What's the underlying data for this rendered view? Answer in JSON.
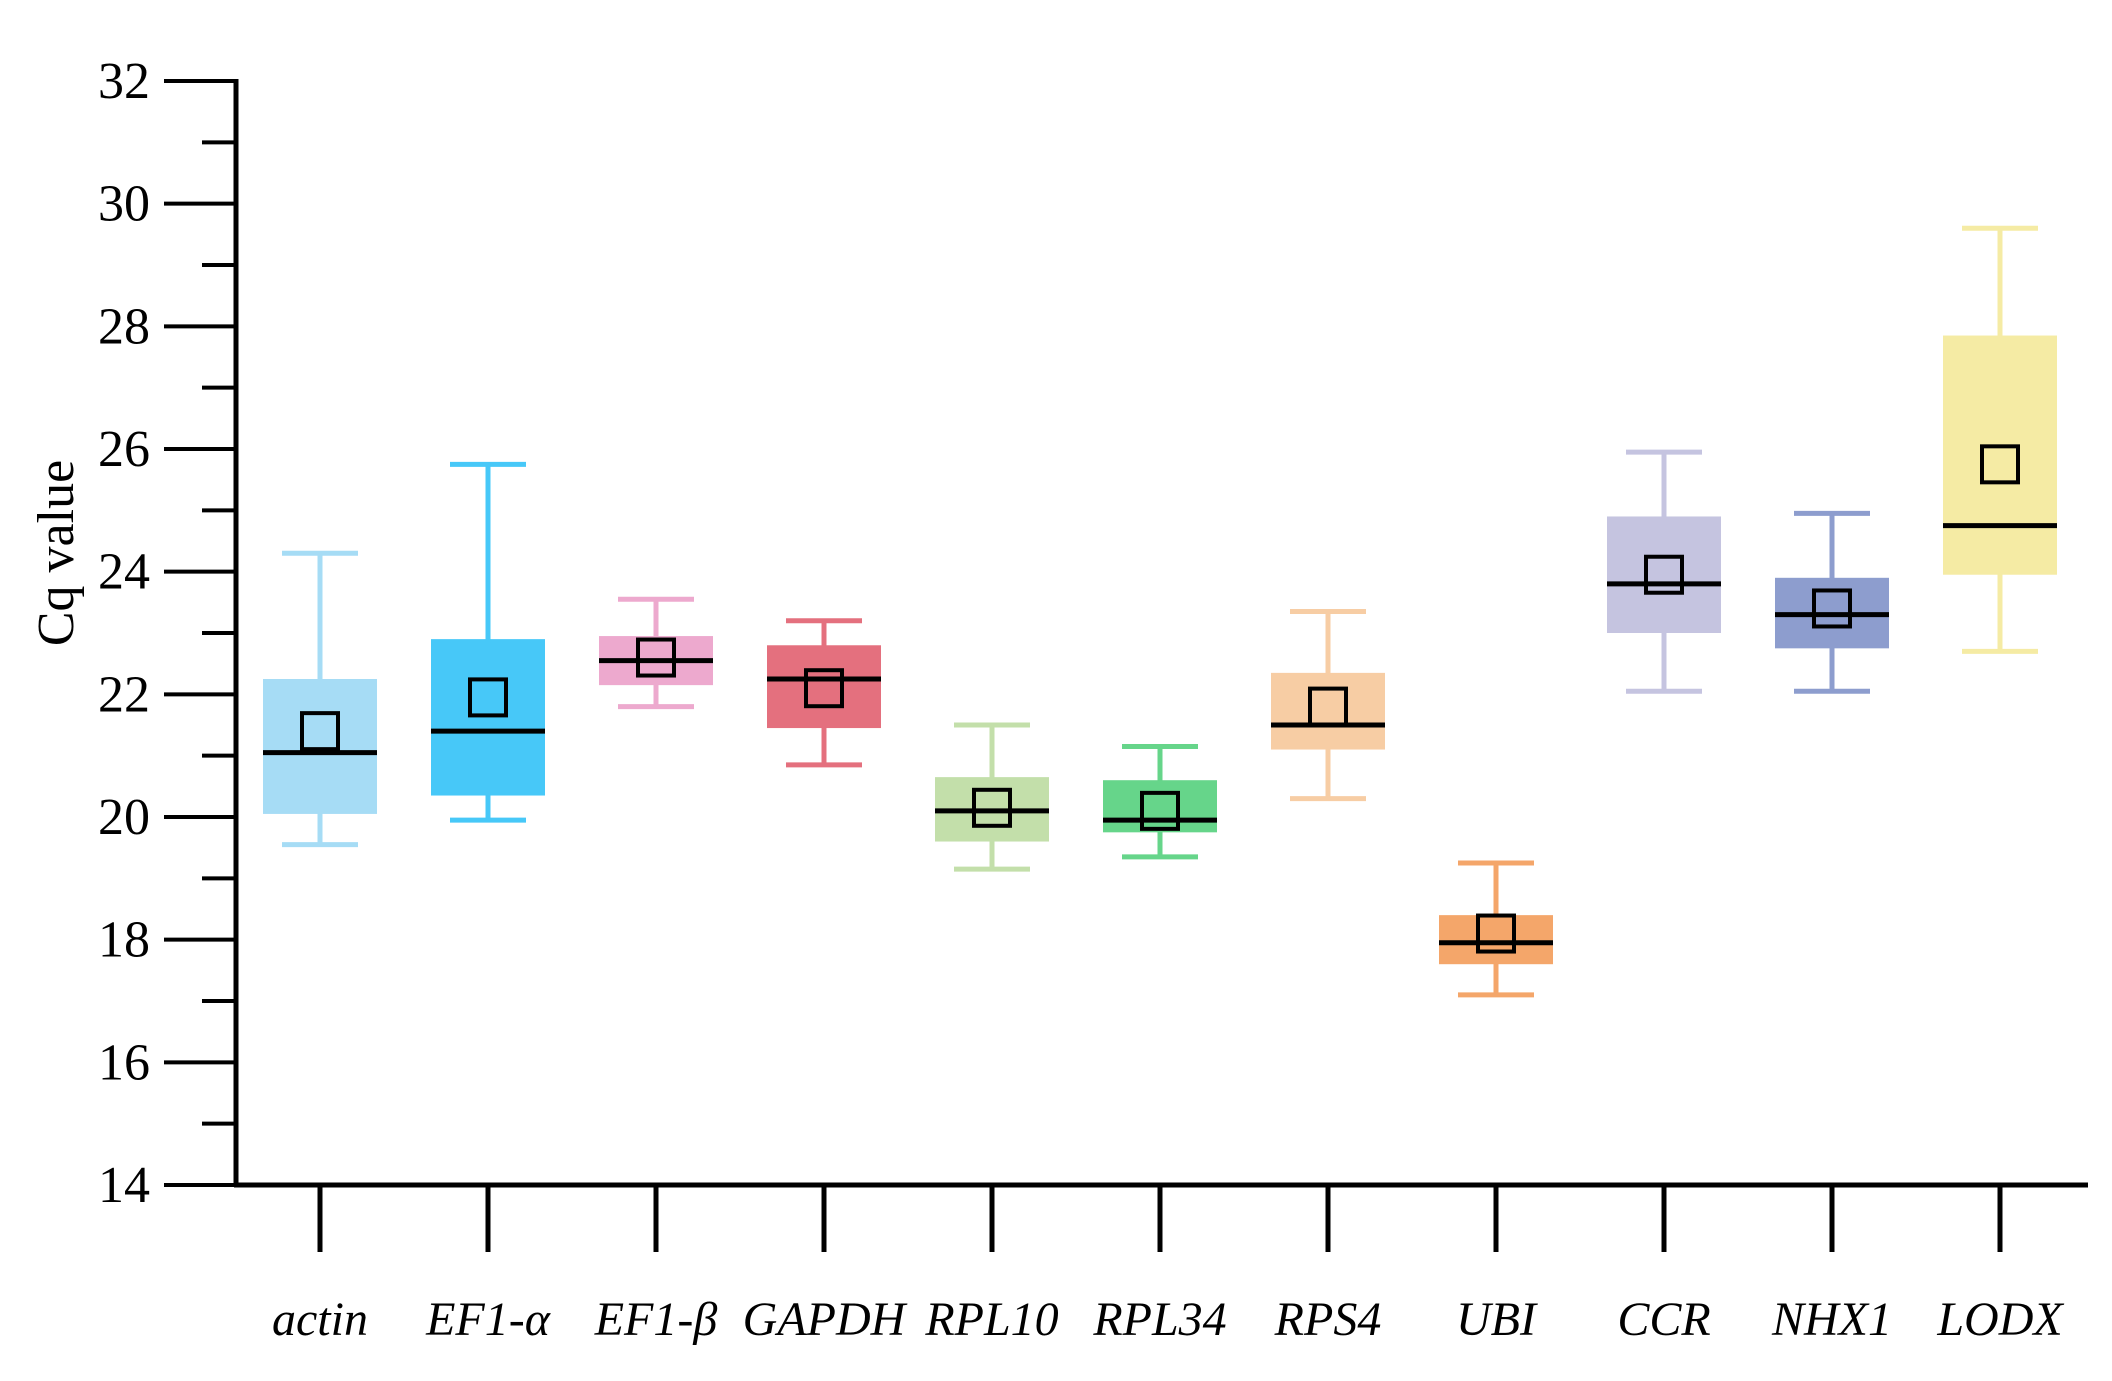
{
  "chart_data": {
    "type": "box",
    "title": "",
    "xlabel": "",
    "ylabel": "Cq value",
    "ylim": [
      14,
      32
    ],
    "yticks": [
      14,
      16,
      18,
      20,
      22,
      24,
      26,
      28,
      30,
      32
    ],
    "ytick_labels": [
      "14",
      "16",
      "18",
      "20",
      "22",
      "24",
      "26",
      "28",
      "30",
      "32"
    ],
    "categories": [
      "actin",
      "EF1-α",
      "EF1-β",
      "GAPDH",
      "RPL10",
      "RPL34",
      "RPS4",
      "UBI",
      "CCR",
      "NHX1",
      "LODX"
    ],
    "boxes": [
      {
        "name": "actin",
        "whisker_low": 19.55,
        "q1": 20.05,
        "median": 21.05,
        "q3": 22.25,
        "whisker_high": 24.3,
        "mean": 21.4,
        "color": "#A6DCF5"
      },
      {
        "name": "EF1-α",
        "whisker_low": 19.95,
        "q1": 20.35,
        "median": 21.4,
        "q3": 22.9,
        "whisker_high": 25.75,
        "mean": 21.95,
        "color": "#47C8F8"
      },
      {
        "name": "EF1-β",
        "whisker_low": 21.8,
        "q1": 22.15,
        "median": 22.55,
        "q3": 22.95,
        "whisker_high": 23.55,
        "mean": 22.6,
        "color": "#EDA9CE"
      },
      {
        "name": "GAPDH",
        "whisker_low": 20.85,
        "q1": 21.45,
        "median": 22.25,
        "q3": 22.8,
        "whisker_high": 23.2,
        "mean": 22.1,
        "color": "#E4707E"
      },
      {
        "name": "RPL10",
        "whisker_low": 19.15,
        "q1": 19.6,
        "median": 20.1,
        "q3": 20.65,
        "whisker_high": 21.5,
        "mean": 20.15,
        "color": "#C3DFAA"
      },
      {
        "name": "RPL34",
        "whisker_low": 19.35,
        "q1": 19.75,
        "median": 19.95,
        "q3": 20.6,
        "whisker_high": 21.15,
        "mean": 20.1,
        "color": "#66D58A"
      },
      {
        "name": "RPS4",
        "whisker_low": 20.3,
        "q1": 21.1,
        "median": 21.5,
        "q3": 22.35,
        "whisker_high": 23.35,
        "mean": 21.8,
        "color": "#F7CDA4"
      },
      {
        "name": "UBI",
        "whisker_low": 17.1,
        "q1": 17.6,
        "median": 17.95,
        "q3": 18.4,
        "whisker_high": 19.25,
        "mean": 18.1,
        "color": "#F4A66A"
      },
      {
        "name": "CCR",
        "whisker_low": 22.05,
        "q1": 23.0,
        "median": 23.8,
        "q3": 24.9,
        "whisker_high": 25.95,
        "mean": 23.95,
        "color": "#C5C4E0"
      },
      {
        "name": "NHX1",
        "whisker_low": 22.05,
        "q1": 22.75,
        "median": 23.3,
        "q3": 23.9,
        "whisker_high": 24.95,
        "mean": 23.4,
        "color": "#8D9DCE"
      },
      {
        "name": "LODX",
        "whisker_low": 22.7,
        "q1": 23.95,
        "median": 24.75,
        "q3": 27.85,
        "whisker_high": 29.6,
        "mean": 25.75,
        "color": "#F5EBA4"
      }
    ],
    "grid": false,
    "legend": "none"
  }
}
